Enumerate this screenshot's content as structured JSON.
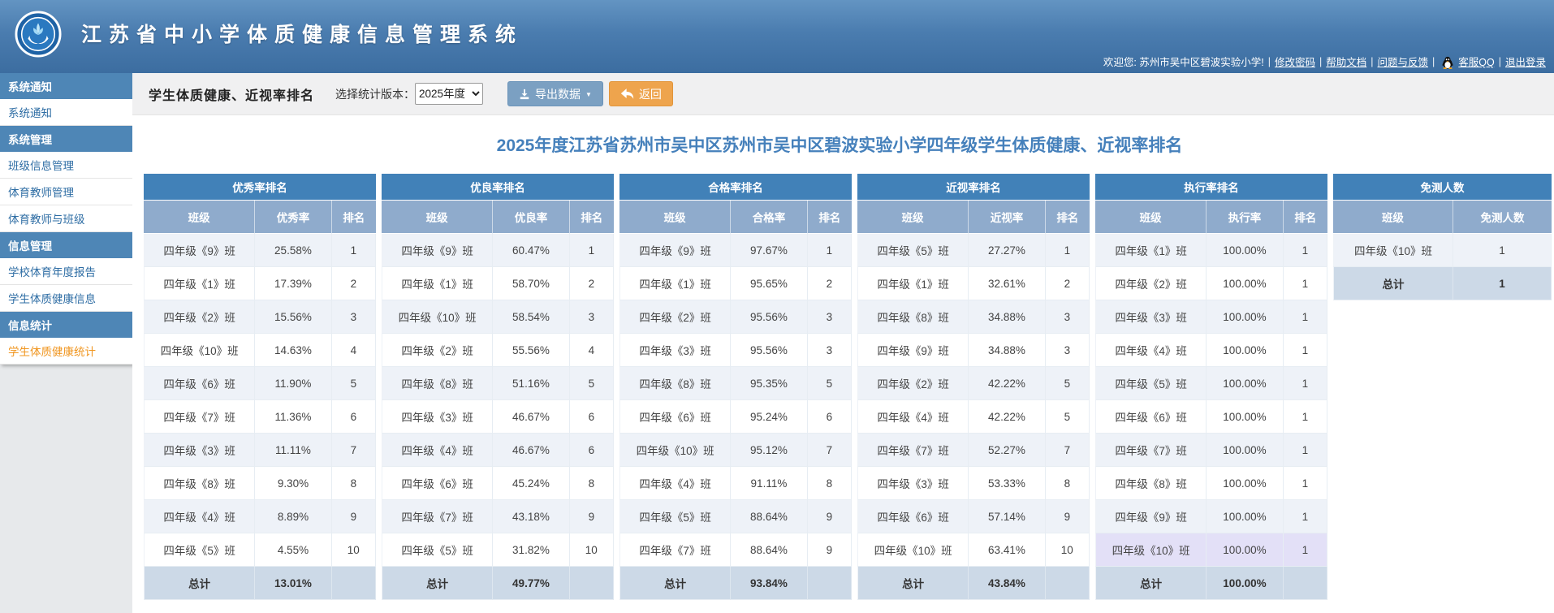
{
  "banner": {
    "title": "江苏省中小学体质健康信息管理系统",
    "welcome": "欢迎您: 苏州市吴中区碧波实验小学!",
    "links": [
      "修改密码",
      "帮助文档",
      "问题与反馈",
      "客服QQ",
      "退出登录"
    ]
  },
  "sidebar": {
    "sections": [
      {
        "header": "系统通知",
        "items": [
          {
            "label": "系统通知",
            "active": false
          }
        ]
      },
      {
        "header": "系统管理",
        "items": [
          {
            "label": "班级信息管理",
            "active": false
          },
          {
            "label": "体育教师管理",
            "active": false
          },
          {
            "label": "体育教师与班级",
            "active": false
          }
        ]
      },
      {
        "header": "信息管理",
        "items": [
          {
            "label": "学校体育年度报告",
            "active": false
          },
          {
            "label": "学生体质健康信息",
            "active": false
          }
        ]
      },
      {
        "header": "信息统计",
        "items": [
          {
            "label": "学生体质健康统计",
            "active": true
          }
        ]
      }
    ]
  },
  "toolbar": {
    "page_title": "学生体质健康、近视率排名",
    "version_label": "选择统计版本：",
    "version_value": "2025年度",
    "export_label": "导出数据",
    "back_label": "返回"
  },
  "main": {
    "title": "2025年度江苏省苏州市吴中区苏州市吴中区碧波实验小学四年级学生体质健康、近视率排名"
  },
  "tables": [
    {
      "title": "优秀率排名",
      "columns": [
        "班级",
        "优秀率",
        "排名"
      ],
      "rows": [
        [
          "四年级《9》班",
          "25.58%",
          "1"
        ],
        [
          "四年级《1》班",
          "17.39%",
          "2"
        ],
        [
          "四年级《2》班",
          "15.56%",
          "3"
        ],
        [
          "四年级《10》班",
          "14.63%",
          "4"
        ],
        [
          "四年级《6》班",
          "11.90%",
          "5"
        ],
        [
          "四年级《7》班",
          "11.36%",
          "6"
        ],
        [
          "四年级《3》班",
          "11.11%",
          "7"
        ],
        [
          "四年级《8》班",
          "9.30%",
          "8"
        ],
        [
          "四年级《4》班",
          "8.89%",
          "9"
        ],
        [
          "四年级《5》班",
          "4.55%",
          "10"
        ]
      ],
      "total": [
        "总计",
        "13.01%",
        ""
      ],
      "highlighted_rows": []
    },
    {
      "title": "优良率排名",
      "columns": [
        "班级",
        "优良率",
        "排名"
      ],
      "rows": [
        [
          "四年级《9》班",
          "60.47%",
          "1"
        ],
        [
          "四年级《1》班",
          "58.70%",
          "2"
        ],
        [
          "四年级《10》班",
          "58.54%",
          "3"
        ],
        [
          "四年级《2》班",
          "55.56%",
          "4"
        ],
        [
          "四年级《8》班",
          "51.16%",
          "5"
        ],
        [
          "四年级《3》班",
          "46.67%",
          "6"
        ],
        [
          "四年级《4》班",
          "46.67%",
          "6"
        ],
        [
          "四年级《6》班",
          "45.24%",
          "8"
        ],
        [
          "四年级《7》班",
          "43.18%",
          "9"
        ],
        [
          "四年级《5》班",
          "31.82%",
          "10"
        ]
      ],
      "total": [
        "总计",
        "49.77%",
        ""
      ],
      "highlighted_rows": []
    },
    {
      "title": "合格率排名",
      "columns": [
        "班级",
        "合格率",
        "排名"
      ],
      "rows": [
        [
          "四年级《9》班",
          "97.67%",
          "1"
        ],
        [
          "四年级《1》班",
          "95.65%",
          "2"
        ],
        [
          "四年级《2》班",
          "95.56%",
          "3"
        ],
        [
          "四年级《3》班",
          "95.56%",
          "3"
        ],
        [
          "四年级《8》班",
          "95.35%",
          "5"
        ],
        [
          "四年级《6》班",
          "95.24%",
          "6"
        ],
        [
          "四年级《10》班",
          "95.12%",
          "7"
        ],
        [
          "四年级《4》班",
          "91.11%",
          "8"
        ],
        [
          "四年级《5》班",
          "88.64%",
          "9"
        ],
        [
          "四年级《7》班",
          "88.64%",
          "9"
        ]
      ],
      "total": [
        "总计",
        "93.84%",
        ""
      ],
      "highlighted_rows": []
    },
    {
      "title": "近视率排名",
      "columns": [
        "班级",
        "近视率",
        "排名"
      ],
      "rows": [
        [
          "四年级《5》班",
          "27.27%",
          "1"
        ],
        [
          "四年级《1》班",
          "32.61%",
          "2"
        ],
        [
          "四年级《8》班",
          "34.88%",
          "3"
        ],
        [
          "四年级《9》班",
          "34.88%",
          "3"
        ],
        [
          "四年级《2》班",
          "42.22%",
          "5"
        ],
        [
          "四年级《4》班",
          "42.22%",
          "5"
        ],
        [
          "四年级《7》班",
          "52.27%",
          "7"
        ],
        [
          "四年级《3》班",
          "53.33%",
          "8"
        ],
        [
          "四年级《6》班",
          "57.14%",
          "9"
        ],
        [
          "四年级《10》班",
          "63.41%",
          "10"
        ]
      ],
      "total": [
        "总计",
        "43.84%",
        ""
      ],
      "highlighted_rows": []
    },
    {
      "title": "执行率排名",
      "columns": [
        "班级",
        "执行率",
        "排名"
      ],
      "rows": [
        [
          "四年级《1》班",
          "100.00%",
          "1"
        ],
        [
          "四年级《2》班",
          "100.00%",
          "1"
        ],
        [
          "四年级《3》班",
          "100.00%",
          "1"
        ],
        [
          "四年级《4》班",
          "100.00%",
          "1"
        ],
        [
          "四年级《5》班",
          "100.00%",
          "1"
        ],
        [
          "四年级《6》班",
          "100.00%",
          "1"
        ],
        [
          "四年级《7》班",
          "100.00%",
          "1"
        ],
        [
          "四年级《8》班",
          "100.00%",
          "1"
        ],
        [
          "四年级《9》班",
          "100.00%",
          "1"
        ],
        [
          "四年级《10》班",
          "100.00%",
          "1"
        ]
      ],
      "total": [
        "总计",
        "100.00%",
        ""
      ],
      "highlighted_rows": [
        9
      ]
    },
    {
      "title": "免测人数",
      "columns": [
        "班级",
        "免测人数"
      ],
      "rows": [
        [
          "四年级《10》班",
          "1"
        ]
      ],
      "total": [
        "总计",
        "1"
      ],
      "highlighted_rows": []
    }
  ],
  "icons": {
    "logo": "school-health-logo",
    "qq": "qq-penguin-icon",
    "export": "download-icon",
    "export_caret": "caret-down-icon",
    "back": "reply-arrow-icon"
  },
  "colors": {
    "banner_blue": "#4a7caf",
    "table_title_blue": "#4181b8",
    "column_header_blue": "#8fabcc",
    "row_tint": "#eef2f8",
    "total_row": "#ccd9e7",
    "highlight_lavender": "#e3e0f7",
    "accent_orange_button": "#eea44d",
    "active_menu_orange": "#f0951e",
    "export_button_blue": "#7ba0c2",
    "main_title_blue": "#4580bb"
  }
}
